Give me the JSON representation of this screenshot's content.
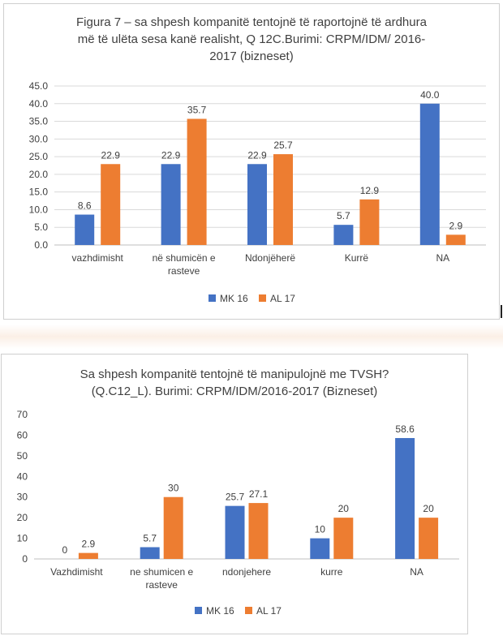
{
  "colors": {
    "series1": "#4472C4",
    "series2": "#ED7D31",
    "grid": "#d9d9d9",
    "axis": "#bfbfbf",
    "text": "#404040"
  },
  "chart_data": [
    {
      "type": "bar",
      "title_lines": [
        "Figura 7 – sa shpesh kompanitë tentojnë të raportojnë të ardhura",
        "më të ulëta sesa kanë realisht, Q 12C.Burimi: CRPM/IDM/ 2016-",
        "2017 (bizneset)"
      ],
      "categories": [
        [
          "vazhdimisht"
        ],
        [
          "në shumicën e",
          "rasteve"
        ],
        [
          "Ndonjëherë"
        ],
        [
          "Kurrë"
        ],
        [
          "NA"
        ]
      ],
      "series": [
        {
          "name": "MK 16",
          "values": [
            8.6,
            22.9,
            22.9,
            5.7,
            40.0
          ],
          "labels": [
            "8.6",
            "22.9",
            "22.9",
            "5.7",
            "40.0"
          ]
        },
        {
          "name": "AL 17",
          "values": [
            22.9,
            35.7,
            25.7,
            12.9,
            2.9
          ],
          "labels": [
            "22.9",
            "35.7",
            "25.7",
            "12.9",
            "2.9"
          ]
        }
      ],
      "ylim": [
        0,
        45
      ],
      "yticks": [
        "0.0",
        "5.0",
        "10.0",
        "15.0",
        "20.0",
        "25.0",
        "30.0",
        "35.0",
        "40.0",
        "45.0"
      ],
      "grid": true,
      "legend": "bottom"
    },
    {
      "type": "bar",
      "title_lines": [
        "Sa shpesh kompanitë tentojnë të manipulojnë me TVSH?",
        "(Q.C12_L). Burimi: CRPM/IDM/2016-2017 (Bizneset)"
      ],
      "categories": [
        [
          "Vazhdimisht"
        ],
        [
          "ne shumicen e",
          "rasteve"
        ],
        [
          "ndonjehere"
        ],
        [
          "kurre"
        ],
        [
          "NA"
        ]
      ],
      "series": [
        {
          "name": "MK 16",
          "values": [
            0,
            5.7,
            25.7,
            10,
            58.6
          ],
          "labels": [
            "0",
            "5.7",
            "25.7",
            "10",
            "58.6"
          ]
        },
        {
          "name": "AL 17",
          "values": [
            2.9,
            30,
            27.1,
            20,
            20
          ],
          "labels": [
            "2.9",
            "30",
            "27.1",
            "20",
            "20"
          ]
        }
      ],
      "ylim": [
        0,
        70
      ],
      "yticks": [
        "0",
        "10",
        "20",
        "30",
        "40",
        "50",
        "60",
        "70"
      ],
      "grid": false,
      "legend": "bottom"
    }
  ]
}
